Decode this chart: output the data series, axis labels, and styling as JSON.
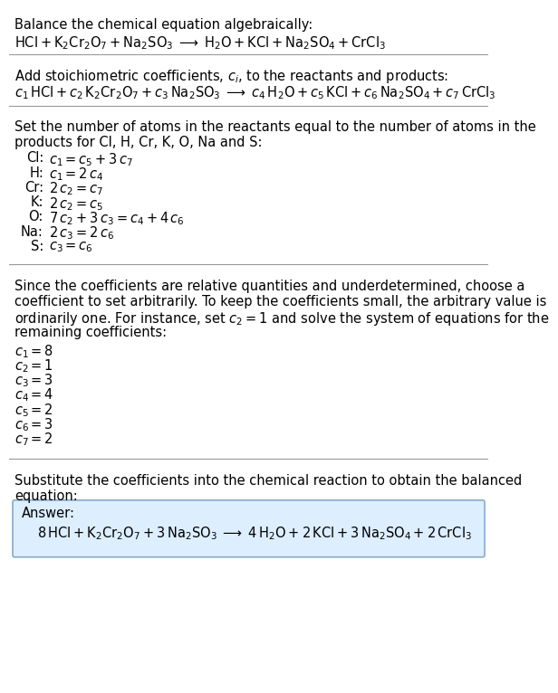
{
  "bg_color": "#ffffff",
  "text_color": "#000000",
  "answer_bg": "#ddeeff",
  "answer_border": "#88aacc",
  "title1": "Balance the chemical equation algebraically:",
  "eq1": "$\\mathrm{HCl + K_2Cr_2O_7 + Na_2SO_3 \\;\\longrightarrow\\; H_2O + KCl + Na_2SO_4 + CrCl_3}$",
  "title2": "Add stoichiometric coefficients, $c_i$, to the reactants and products:",
  "eq2": "$c_1\\,\\mathrm{HCl} + c_2\\,\\mathrm{K_2Cr_2O_7} + c_3\\,\\mathrm{Na_2SO_3} \\;\\longrightarrow\\; c_4\\,\\mathrm{H_2O} + c_5\\,\\mathrm{KCl} + c_6\\,\\mathrm{Na_2SO_4} + c_7\\,\\mathrm{CrCl_3}$",
  "title3a": "Set the number of atoms in the reactants equal to the number of atoms in the",
  "title3b": "products for Cl, H, Cr, K, O, Na and S:",
  "equations": [
    [
      "Cl:",
      "$c_1 = c_5 + 3\\,c_7$"
    ],
    [
      "H:",
      "$c_1 = 2\\,c_4$"
    ],
    [
      "Cr:",
      "$2\\,c_2 = c_7$"
    ],
    [
      "K:",
      "$2\\,c_2 = c_5$"
    ],
    [
      "O:",
      "$7\\,c_2 + 3\\,c_3 = c_4 + 4\\,c_6$"
    ],
    [
      "Na:",
      "$2\\,c_3 = 2\\,c_6$"
    ],
    [
      "S:",
      "$c_3 = c_6$"
    ]
  ],
  "title4a": "Since the coefficients are relative quantities and underdetermined, choose a",
  "title4b": "coefficient to set arbitrarily. To keep the coefficients small, the arbitrary value is",
  "title4c": "ordinarily one. For instance, set $c_2 = 1$ and solve the system of equations for the",
  "title4d": "remaining coefficients:",
  "coefficients": [
    "$c_1 = 8$",
    "$c_2 = 1$",
    "$c_3 = 3$",
    "$c_4 = 4$",
    "$c_5 = 2$",
    "$c_6 = 3$",
    "$c_7 = 2$"
  ],
  "title5a": "Substitute the coefficients into the chemical reaction to obtain the balanced",
  "title5b": "equation:",
  "answer_label": "Answer:",
  "answer_eq": "$8\\,\\mathrm{HCl} + \\mathrm{K_2Cr_2O_7} + 3\\,\\mathrm{Na_2SO_3} \\;\\longrightarrow\\; 4\\,\\mathrm{H_2O} + 2\\,\\mathrm{KCl} + 3\\,\\mathrm{Na_2SO_4} + 2\\,\\mathrm{CrCl_3}$"
}
